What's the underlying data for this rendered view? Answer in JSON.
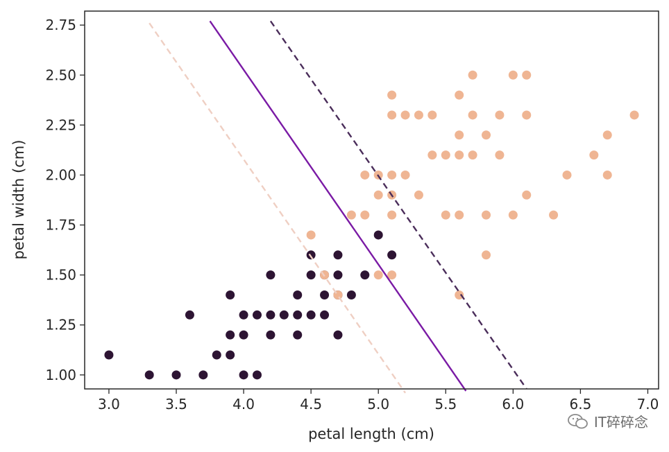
{
  "chart_data": {
    "type": "scatter",
    "title": "",
    "xlabel": "petal length (cm)",
    "ylabel": "petal width (cm)",
    "xlim": [
      2.82,
      7.08
    ],
    "ylim": [
      0.93,
      2.82
    ],
    "xticks": [
      "3.0",
      "3.5",
      "4.0",
      "4.5",
      "5.0",
      "5.5",
      "6.0",
      "6.5",
      "7.0"
    ],
    "yticks": [
      "1.00",
      "1.25",
      "1.50",
      "1.75",
      "2.00",
      "2.25",
      "2.50",
      "2.75"
    ],
    "grid": false,
    "colors": {
      "class0": "#2d1433",
      "class1": "#efb593",
      "boundary": "#7a1aa5",
      "margin_low": "#efcfc3",
      "margin_high": "#4a2d5a"
    },
    "series": [
      {
        "points": [
          [
            3.0,
            1.1
          ],
          [
            3.3,
            1.0
          ],
          [
            3.5,
            1.0
          ],
          [
            3.6,
            1.3
          ],
          [
            3.7,
            1.0
          ],
          [
            3.8,
            1.1
          ],
          [
            3.9,
            1.1
          ],
          [
            3.9,
            1.2
          ],
          [
            3.9,
            1.4
          ],
          [
            4.0,
            1.0
          ],
          [
            4.0,
            1.2
          ],
          [
            4.0,
            1.3
          ],
          [
            4.1,
            1.0
          ],
          [
            4.1,
            1.3
          ],
          [
            4.2,
            1.2
          ],
          [
            4.2,
            1.3
          ],
          [
            4.2,
            1.5
          ],
          [
            4.3,
            1.3
          ],
          [
            4.4,
            1.2
          ],
          [
            4.4,
            1.3
          ],
          [
            4.4,
            1.4
          ],
          [
            4.5,
            1.3
          ],
          [
            4.5,
            1.5
          ],
          [
            4.5,
            1.6
          ],
          [
            4.6,
            1.3
          ],
          [
            4.6,
            1.4
          ],
          [
            4.6,
            1.5
          ],
          [
            4.7,
            1.2
          ],
          [
            4.7,
            1.4
          ],
          [
            4.7,
            1.5
          ],
          [
            4.7,
            1.6
          ],
          [
            4.8,
            1.4
          ],
          [
            4.9,
            1.5
          ],
          [
            5.0,
            1.7
          ],
          [
            5.1,
            1.6
          ]
        ]
      },
      {
        "points": [
          [
            4.5,
            1.7
          ],
          [
            4.6,
            1.5
          ],
          [
            4.7,
            1.4
          ],
          [
            4.8,
            1.8
          ],
          [
            4.9,
            1.8
          ],
          [
            4.9,
            2.0
          ],
          [
            5.0,
            1.5
          ],
          [
            5.0,
            1.9
          ],
          [
            5.0,
            2.0
          ],
          [
            5.1,
            1.5
          ],
          [
            5.1,
            1.8
          ],
          [
            5.1,
            1.9
          ],
          [
            5.1,
            2.0
          ],
          [
            5.1,
            2.3
          ],
          [
            5.1,
            2.4
          ],
          [
            5.2,
            2.0
          ],
          [
            5.2,
            2.3
          ],
          [
            5.3,
            1.9
          ],
          [
            5.3,
            2.3
          ],
          [
            5.4,
            2.1
          ],
          [
            5.4,
            2.3
          ],
          [
            5.5,
            1.8
          ],
          [
            5.5,
            2.1
          ],
          [
            5.6,
            1.4
          ],
          [
            5.6,
            1.8
          ],
          [
            5.6,
            2.1
          ],
          [
            5.6,
            2.2
          ],
          [
            5.6,
            2.4
          ],
          [
            5.7,
            2.1
          ],
          [
            5.7,
            2.3
          ],
          [
            5.7,
            2.5
          ],
          [
            5.8,
            1.6
          ],
          [
            5.8,
            1.8
          ],
          [
            5.8,
            2.2
          ],
          [
            5.9,
            2.1
          ],
          [
            5.9,
            2.3
          ],
          [
            6.0,
            1.8
          ],
          [
            6.0,
            2.5
          ],
          [
            6.1,
            1.9
          ],
          [
            6.1,
            2.3
          ],
          [
            6.1,
            2.5
          ],
          [
            6.3,
            1.8
          ],
          [
            6.4,
            2.0
          ],
          [
            6.6,
            2.1
          ],
          [
            6.7,
            2.0
          ],
          [
            6.7,
            2.2
          ],
          [
            6.9,
            2.3
          ]
        ]
      }
    ],
    "lines": [
      {
        "role": "decision-boundary",
        "style": "solid",
        "color_key": "boundary",
        "from": [
          3.75,
          2.77
        ],
        "to": [
          5.65,
          0.92
        ]
      },
      {
        "role": "margin",
        "style": "dashed",
        "color_key": "margin_low",
        "from": [
          3.3,
          2.76
        ],
        "to": [
          5.2,
          0.91
        ]
      },
      {
        "role": "margin",
        "style": "dashed",
        "color_key": "margin_high",
        "from": [
          4.2,
          2.77
        ],
        "to": [
          6.1,
          0.93
        ]
      }
    ]
  },
  "watermark": {
    "text": "IT碎碎念",
    "icon": "wechat-icon"
  }
}
